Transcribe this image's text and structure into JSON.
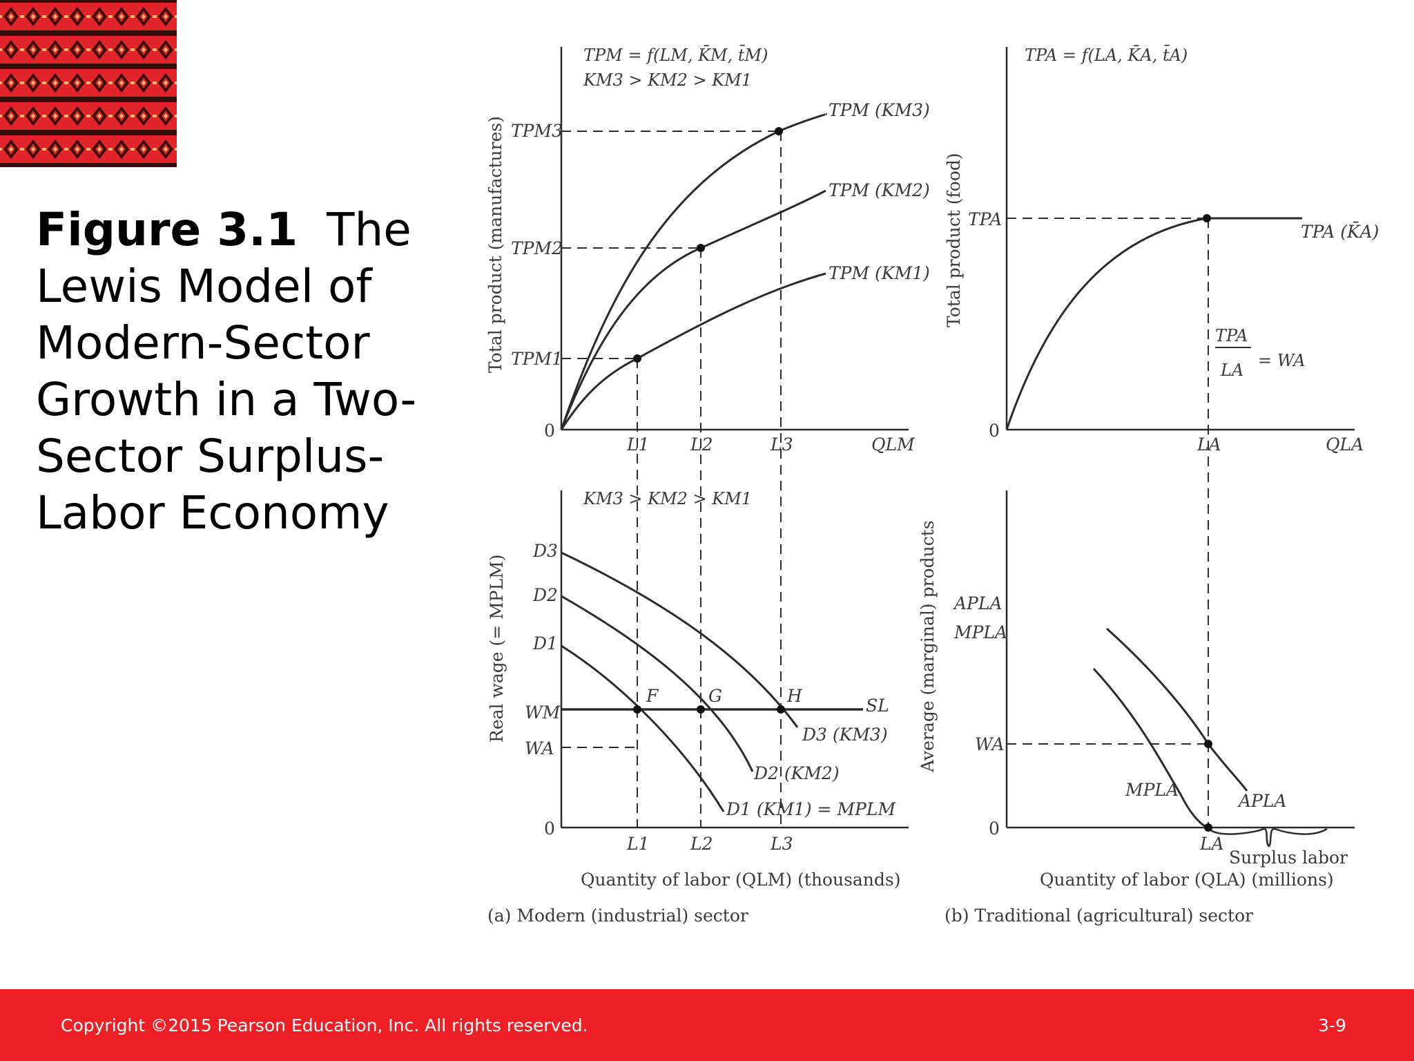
{
  "slide": {
    "figure_number": "Figure 3.1",
    "title": "The Lewis Model of Modern-Sector Growth in a Two-Sector Surplus-Labor Economy"
  },
  "footer": {
    "copyright": "Copyright ©2015 Pearson Education, Inc. All rights reserved.",
    "page": "3-9"
  },
  "colors": {
    "footer_bg": "#ee1f25",
    "pattern_red": "#e3232a",
    "pattern_dark": "#3a0d0d",
    "pattern_gold": "#f2c36b"
  },
  "panel_a_top": {
    "function": "TPM = f(LM, K̄M, t̄M)",
    "capital_order": "KM3 > KM2 > KM1",
    "y_axis_label": "Total product (manufactures)",
    "y_ticks": [
      "TPM3",
      "TPM2",
      "TPM1",
      "0"
    ],
    "x_ticks": [
      "L1",
      "L2",
      "L3",
      "QLM"
    ],
    "curves": [
      "TPM (KM3)",
      "TPM (KM2)",
      "TPM (KM1)"
    ]
  },
  "panel_b_top": {
    "function": "TPA = f(LA, K̄A, t̄A)",
    "y_axis_label": "Total product (food)",
    "y_ticks": [
      "TPA",
      "0"
    ],
    "x_ticks": [
      "LA",
      "QLA"
    ],
    "curve": "TPA (K̄A)",
    "wage_eq_num": "TPA",
    "wage_eq_den": "LA",
    "wage_eq_rhs": "= WA"
  },
  "panel_a_bottom": {
    "capital_order": "KM3 > KM2 > KM1",
    "y_axis_label": "Real wage (= MPLM)",
    "y_ticks": [
      "D3",
      "D2",
      "D1",
      "WM",
      "WA",
      "0"
    ],
    "x_ticks": [
      "L1",
      "L2",
      "L3"
    ],
    "points": [
      "F",
      "G",
      "H"
    ],
    "supply": "SL",
    "curves": [
      "D3 (KM3)",
      "D2 (KM2)",
      "D1 (KM1) = MPLM"
    ],
    "x_axis_label": "Quantity of labor (QLM) (thousands)",
    "caption": "(a) Modern (industrial) sector"
  },
  "panel_b_bottom": {
    "y_axis_label": "Average (marginal) products",
    "y_ticks": [
      "APLA",
      "MPLA",
      "WA",
      "0"
    ],
    "x_ticks": [
      "LA"
    ],
    "curves": [
      "MPLA",
      "APLA"
    ],
    "bracket_label": "Surplus labor",
    "x_axis_label": "Quantity of labor (QLA) (millions)",
    "caption": "(b) Traditional (agricultural) sector"
  }
}
